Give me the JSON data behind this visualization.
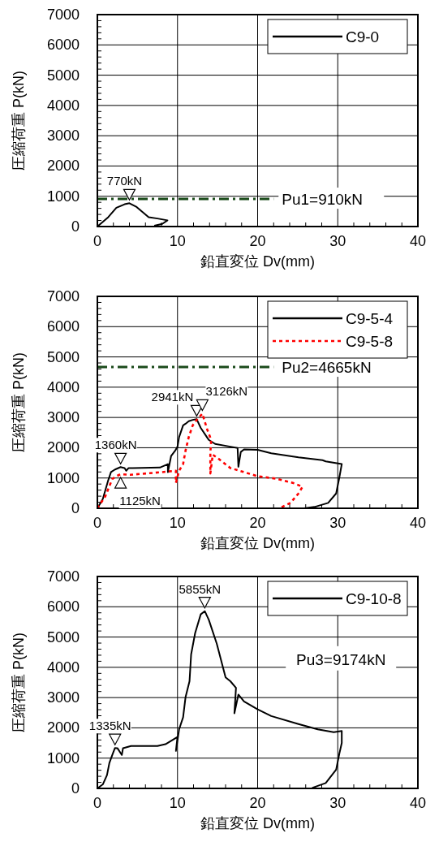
{
  "chart_data": [
    {
      "type": "line",
      "xlabel": "鉛直変位 Dv(mm)",
      "ylabel": "圧縮荷重 P(kN)",
      "xlim": [
        0,
        40
      ],
      "ylim": [
        0,
        7000
      ],
      "xticks": [
        0,
        10,
        20,
        30,
        40
      ],
      "yticks": [
        0,
        1000,
        2000,
        3000,
        4000,
        5000,
        6000,
        7000
      ],
      "grid": true,
      "legend": "top right",
      "series": [
        {
          "name": "C9-0",
          "color": "#000000",
          "line_style": "solid",
          "x": [
            0,
            1.36,
            2.37,
            3.4,
            4.0,
            4.9,
            6.4,
            7.5,
            8.75,
            8.1,
            7.1
          ],
          "values": [
            0,
            310,
            620,
            735,
            770,
            646,
            310,
            265,
            204,
            88,
            27
          ]
        }
      ],
      "ref_lines": [
        {
          "axis": "y",
          "value": 910,
          "label": "Pu1=910kN",
          "color": "#1a4a1a",
          "line_style": "dashdot"
        }
      ],
      "annotations": [
        {
          "text": "770kN",
          "x": 4.0,
          "y": 770
        }
      ]
    },
    {
      "type": "line",
      "xlabel": "鉛直変位 Dv(mm)",
      "ylabel": "圧縮荷重 P(kN)",
      "xlim": [
        0,
        40
      ],
      "ylim": [
        0,
        7000
      ],
      "xticks": [
        0,
        10,
        20,
        30,
        40
      ],
      "yticks": [
        0,
        1000,
        2000,
        3000,
        4000,
        5000,
        6000,
        7000
      ],
      "grid": true,
      "legend": "top right",
      "series": [
        {
          "name": "C9-5-4",
          "color": "#000000",
          "line_style": "solid",
          "x": [
            0,
            0.68,
            1.36,
            1.7,
            2.2,
            2.9,
            3.4,
            3.6,
            3.9,
            4.4,
            7.8,
            8.8,
            8.8,
            9.2,
            9.7,
            10,
            10.2,
            10.7,
            11,
            11.4,
            11.9,
            12.4,
            12.9,
            13.9,
            14.7,
            16.6,
            17.5,
            17.6,
            17.9,
            18.3,
            20,
            21.7,
            25.1,
            28.1,
            28.5,
            30.5,
            30.2,
            29.8,
            28.8,
            27.1,
            25.8
          ],
          "values": [
            0,
            310,
            930,
            1195,
            1280,
            1360,
            1330,
            1240,
            1330,
            1330,
            1345,
            1460,
            1195,
            1725,
            1900,
            2035,
            2350,
            2740,
            2790,
            2875,
            2920,
            2941,
            2655,
            2260,
            2125,
            2035,
            1990,
            1370,
            1860,
            1945,
            1930,
            1815,
            1680,
            1590,
            1550,
            1460,
            1020,
            490,
            177,
            44,
            0
          ]
        },
        {
          "name": "C9-5-8",
          "color": "#ff0000",
          "line_style": "dotted",
          "x": [
            0,
            1.0,
            1.86,
            2.37,
            2.9,
            4.07,
            6.1,
            8.1,
            9.8,
            9.8,
            10.2,
            10.7,
            11,
            11.4,
            11.9,
            12.4,
            13.1,
            13.7,
            14.2,
            14.1,
            14.1,
            14.4,
            14.9,
            16.6,
            18.3,
            20,
            22.4,
            24.4,
            25.6,
            25.1,
            24.1,
            22.7
          ],
          "values": [
            0,
            400,
            970,
            1060,
            1125,
            1105,
            1150,
            1195,
            1240,
            840,
            1240,
            1460,
            1900,
            2350,
            2740,
            2920,
            3126,
            2610,
            2260,
            1815,
            1150,
            1770,
            1680,
            1330,
            1195,
            1060,
            975,
            840,
            710,
            490,
            177,
            0
          ]
        }
      ],
      "ref_lines": [
        {
          "axis": "y",
          "value": 4665,
          "label": "Pu2=4665kN",
          "color": "#1a4a1a",
          "line_style": "dashdot"
        }
      ],
      "annotations": [
        {
          "text": "1360kN",
          "x": 2.9,
          "y": 1360
        },
        {
          "text": "1125kN",
          "x": 2.9,
          "y": 1125
        },
        {
          "text": "2941kN",
          "x": 12.4,
          "y": 2941
        },
        {
          "text": "3126kN",
          "x": 13.1,
          "y": 3126
        }
      ]
    },
    {
      "type": "line",
      "xlabel": "鉛直変位 Dv(mm)",
      "ylabel": "圧縮荷重 P(kN)",
      "xlim": [
        0,
        40
      ],
      "ylim": [
        0,
        7000
      ],
      "xticks": [
        0,
        10,
        20,
        30,
        40
      ],
      "yticks": [
        0,
        1000,
        2000,
        3000,
        4000,
        5000,
        6000,
        7000
      ],
      "grid": true,
      "legend": "top right",
      "series": [
        {
          "name": "C9-10-8",
          "color": "#000000",
          "line_style": "solid",
          "x": [
            0,
            0.68,
            1.2,
            1.5,
            1.86,
            2.2,
            2.5,
            3.05,
            3.2,
            4.2,
            7.5,
            8.5,
            10,
            9.8,
            10.2,
            10.7,
            11,
            11.5,
            11.7,
            12.2,
            12.9,
            13.4,
            13.9,
            14.9,
            16,
            16.6,
            17.3,
            17.1,
            17.6,
            18.3,
            20,
            21.7,
            25.1,
            27.5,
            29.5,
            30.5,
            30.5,
            30.2,
            29.8,
            28.5,
            26.8
          ],
          "values": [
            0,
            133,
            440,
            840,
            1105,
            1335,
            1330,
            1105,
            1330,
            1400,
            1400,
            1460,
            1700,
            1240,
            1950,
            2350,
            3010,
            3540,
            4425,
            5130,
            5750,
            5855,
            5575,
            4780,
            3670,
            3540,
            3320,
            2480,
            3100,
            2875,
            2610,
            2390,
            2125,
            1950,
            1860,
            1900,
            1500,
            1150,
            620,
            177,
            18
          ]
        }
      ],
      "annotations": [
        {
          "text": "1335kN",
          "x": 2.2,
          "y": 1335
        },
        {
          "text": "5855kN",
          "x": 13.4,
          "y": 5855
        },
        "Pu3=9174kN"
      ]
    }
  ]
}
